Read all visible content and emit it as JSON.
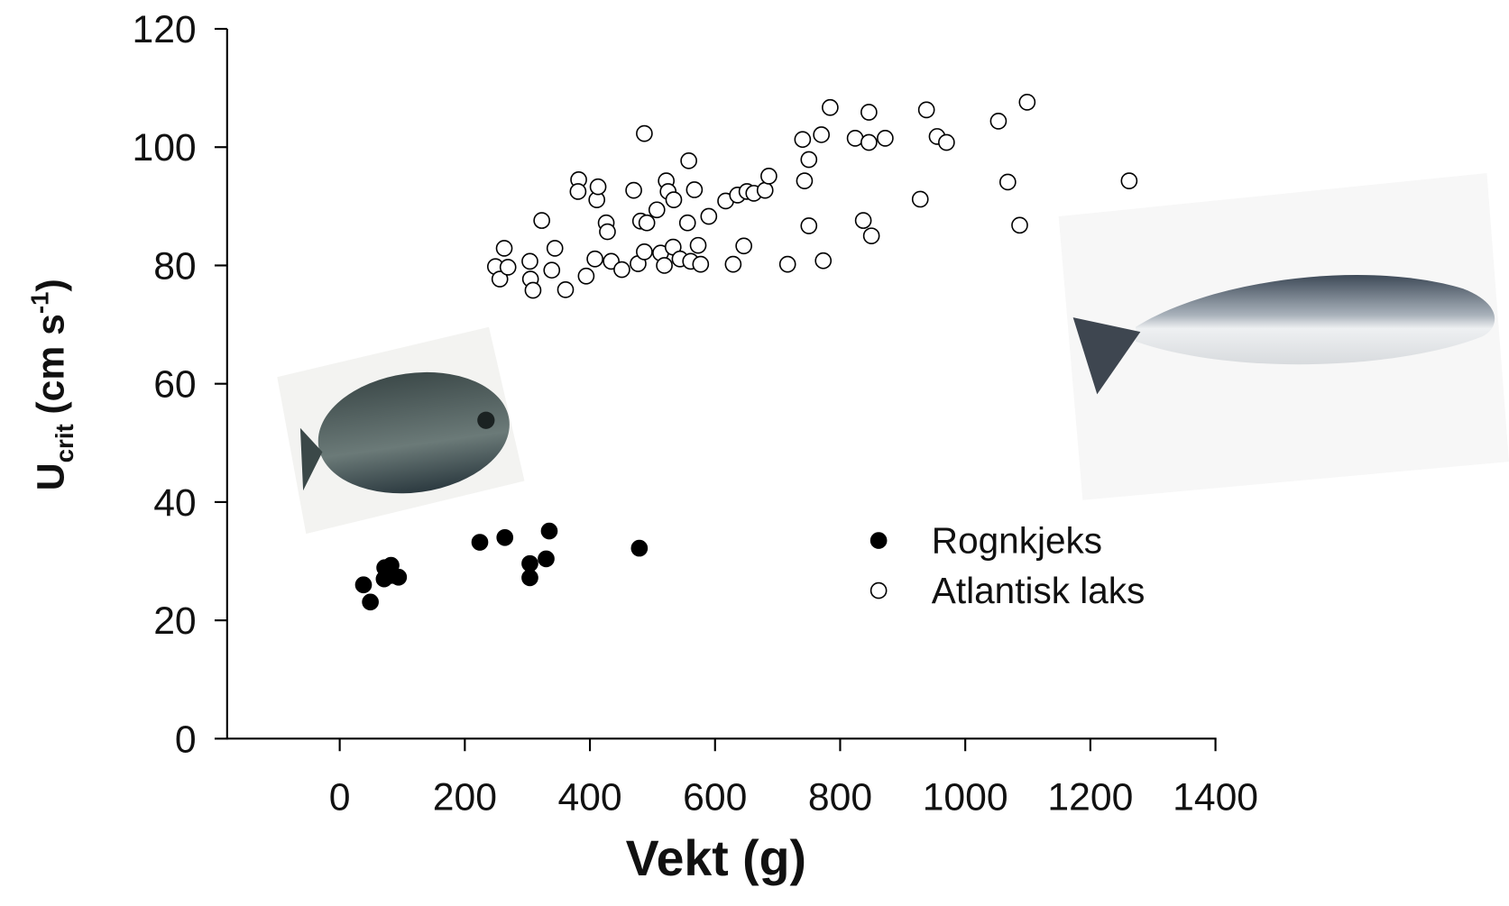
{
  "chart_data": {
    "type": "scatter",
    "x_label": "Vekt (g)",
    "y_label": {
      "main": "U",
      "subscript": "crit",
      "unit": "(cm s",
      "superscript": "-1",
      "close": ")"
    },
    "xlim": [
      -180,
      1400
    ],
    "ylim": [
      0,
      120
    ],
    "xticks": [
      0,
      200,
      400,
      600,
      800,
      1000,
      1200,
      1400
    ],
    "yticks": [
      0,
      20,
      40,
      60,
      80,
      100,
      120
    ],
    "legend_position": "right",
    "series": [
      {
        "name": "Rognkjeks",
        "color": "#000000",
        "filled": true,
        "x": [
          38,
          49,
          71,
          82,
          72,
          94,
          83,
          224,
          264,
          304,
          304,
          330,
          335,
          479
        ],
        "values": [
          26.0,
          23.1,
          27.0,
          29.3,
          28.9,
          27.3,
          27.6,
          33.2,
          34.0,
          29.6,
          27.2,
          30.4,
          35.1,
          32.2
        ]
      },
      {
        "name": "Atlantisk laks",
        "color": "#000000",
        "filled": false,
        "x": [
          249,
          256,
          263,
          269,
          304,
          305,
          309,
          323,
          339,
          344,
          361,
          382,
          381,
          394,
          408,
          411,
          413,
          426,
          428,
          434,
          451,
          470,
          481,
          487,
          477,
          487,
          491,
          507,
          513,
          519,
          522,
          525,
          534,
          533,
          544,
          556,
          558,
          561,
          567,
          573,
          577,
          590,
          617,
          629,
          636,
          646,
          651,
          662,
          680,
          686,
          716,
          740,
          743,
          750,
          750,
          770,
          773,
          784,
          824,
          837,
          846,
          846,
          850,
          872,
          928,
          938,
          955,
          970,
          1053,
          1068,
          1087,
          1099,
          1262
        ],
        "values": [
          79.8,
          77.7,
          82.9,
          79.7,
          80.7,
          77.7,
          75.8,
          87.6,
          79.2,
          82.9,
          75.9,
          94.5,
          92.5,
          78.2,
          81.1,
          91.1,
          93.3,
          87.2,
          85.7,
          80.7,
          79.3,
          92.7,
          87.5,
          102.3,
          80.3,
          82.3,
          87.2,
          89.4,
          82.1,
          80.0,
          94.3,
          92.5,
          91.1,
          83.1,
          81.1,
          87.2,
          97.7,
          80.7,
          92.8,
          83.4,
          80.2,
          88.3,
          90.9,
          80.2,
          91.9,
          83.3,
          92.5,
          92.2,
          92.7,
          95.1,
          80.2,
          101.3,
          94.3,
          97.9,
          86.7,
          102.1,
          80.8,
          106.7,
          101.5,
          87.6,
          105.9,
          100.8,
          85.0,
          101.5,
          91.2,
          106.3,
          101.8,
          100.8,
          104.4,
          94.1,
          86.8,
          107.6,
          94.3
        ]
      }
    ]
  }
}
